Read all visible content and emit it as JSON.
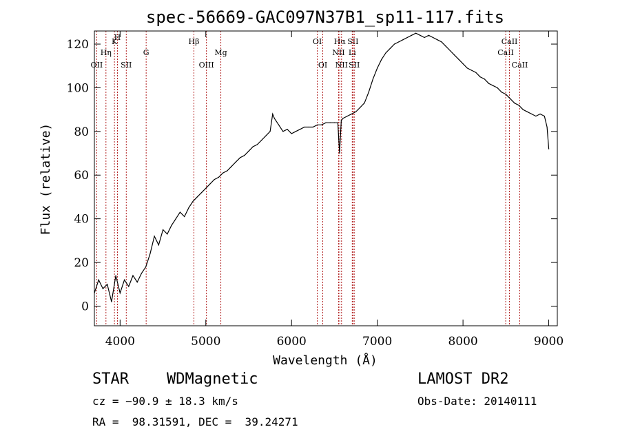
{
  "chart_data": {
    "type": "line",
    "title": "spec-56669-GAC097N37B1_sp11-117.fits",
    "xlabel": "Wavelength (Å)",
    "ylabel": "Flux (relative)",
    "xlim": [
      3700,
      9100
    ],
    "ylim": [
      -9,
      126
    ],
    "x_ticks": [
      4000,
      5000,
      6000,
      7000,
      8000,
      9000
    ],
    "y_ticks": [
      0,
      20,
      40,
      60,
      80,
      100,
      120
    ],
    "grid": false,
    "colors": {
      "spectrum": "#000000",
      "lines": "#b22222",
      "axes": "#000000"
    },
    "series": [
      {
        "x": [
          3700,
          3750,
          3800,
          3850,
          3900,
          3950,
          4000,
          4050,
          4100,
          4150,
          4200,
          4250,
          4300,
          4350,
          4400,
          4450,
          4500,
          4550,
          4600,
          4650,
          4700,
          4750,
          4800,
          4850,
          4900,
          4950,
          5000,
          5050,
          5100,
          5150,
          5200,
          5250,
          5300,
          5350,
          5400,
          5450,
          5500,
          5550,
          5600,
          5650,
          5700,
          5750,
          5780,
          5800,
          5850,
          5900,
          5950,
          6000,
          6050,
          6100,
          6150,
          6200,
          6250,
          6300,
          6350,
          6400,
          6450,
          6500,
          6540,
          6560,
          6580,
          6600,
          6650,
          6700,
          6750,
          6800,
          6850,
          6900,
          6950,
          7000,
          7050,
          7100,
          7150,
          7200,
          7250,
          7300,
          7350,
          7400,
          7450,
          7500,
          7550,
          7600,
          7650,
          7700,
          7750,
          7800,
          7850,
          7900,
          7950,
          8000,
          8050,
          8100,
          8150,
          8200,
          8250,
          8300,
          8350,
          8400,
          8450,
          8500,
          8550,
          8600,
          8650,
          8700,
          8750,
          8800,
          8850,
          8900,
          8950,
          8980,
          9000
        ],
        "y": [
          6,
          12,
          8,
          10,
          2,
          14,
          6,
          12,
          9,
          14,
          11,
          15,
          18,
          24,
          32,
          28,
          35,
          33,
          37,
          40,
          43,
          41,
          45,
          48,
          50,
          52,
          54,
          56,
          58,
          59,
          61,
          62,
          64,
          66,
          68,
          69,
          71,
          73,
          74,
          76,
          78,
          80,
          88,
          86,
          83,
          80,
          81,
          79,
          80,
          81,
          82,
          82,
          82,
          83,
          83,
          84,
          84,
          84,
          84,
          70,
          85,
          86,
          87,
          88,
          89,
          91,
          93,
          98,
          104,
          109,
          113,
          116,
          118,
          120,
          121,
          122,
          123,
          124,
          125,
          124,
          123,
          124,
          123,
          122,
          121,
          119,
          117,
          115,
          113,
          111,
          109,
          108,
          107,
          105,
          104,
          102,
          101,
          100,
          98,
          97,
          95,
          93,
          92,
          90,
          89,
          88,
          87,
          88,
          87,
          82,
          72
        ]
      }
    ],
    "annotations": [
      {
        "label": "OII",
        "x": 3727,
        "row": 3
      },
      {
        "label": "Hη",
        "x": 3835,
        "row": 2
      },
      {
        "label": "K",
        "x": 3934,
        "row": 1
      },
      {
        "label": "H",
        "x": 3969,
        "row": 0
      },
      {
        "label": "SII",
        "x": 4072,
        "row": 3
      },
      {
        "label": "G",
        "x": 4304,
        "row": 2
      },
      {
        "label": "Hβ",
        "x": 4861,
        "row": 1
      },
      {
        "label": "OIII",
        "x": 5007,
        "row": 3
      },
      {
        "label": "Mg",
        "x": 5175,
        "row": 2
      },
      {
        "label": "OI",
        "x": 6300,
        "row": 1
      },
      {
        "label": "OI",
        "x": 6364,
        "row": 3
      },
      {
        "label": "Hα",
        "x": 6563,
        "row": 1
      },
      {
        "label": "NII",
        "x": 6548,
        "row": 2
      },
      {
        "label": "NII",
        "x": 6583,
        "row": 3
      },
      {
        "label": "SII",
        "x": 6716,
        "row": 1
      },
      {
        "label": "Li",
        "x": 6708,
        "row": 2
      },
      {
        "label": "SII",
        "x": 6731,
        "row": 3
      },
      {
        "label": "CaII",
        "x": 8498,
        "row": 2
      },
      {
        "label": "CaII",
        "x": 8542,
        "row": 1
      },
      {
        "label": "CaII",
        "x": 8662,
        "row": 3
      }
    ]
  },
  "footer": {
    "class": "STAR",
    "subclass": "WDMagnetic",
    "survey": "LAMOST DR2",
    "cz": "cz = −90.9 ± 18.3 km/s",
    "obs_date": "Obs-Date: 20140111",
    "radec": "RA =  98.31591, DEC =  39.24271"
  }
}
